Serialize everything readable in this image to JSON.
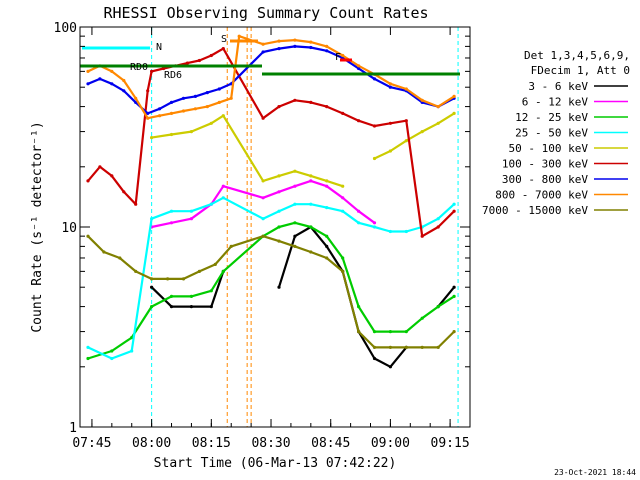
{
  "chart_data": {
    "type": "line",
    "title": "RHESSI Observing Summary Count Rates",
    "xlabel": "Start Time (06-Mar-13 07:42:22)",
    "ylabel": "Count Rate (s⁻¹ detector⁻¹)",
    "y_scale": "log",
    "ylim": [
      1,
      100
    ],
    "xlim": [
      "07:42",
      "09:20"
    ],
    "x_ticks": [
      "07:45",
      "08:00",
      "08:15",
      "08:30",
      "08:45",
      "09:00",
      "09:15"
    ],
    "y_ticks": [
      "1",
      "10",
      "100"
    ],
    "grid": false,
    "legend_position": "right",
    "legend_header": [
      "Det 1,3,4,5,6,9,",
      "FDecim 1, Att 0"
    ],
    "series": [
      {
        "name": "3 - 6 keV",
        "color": "#000000",
        "x": [
          "07:44",
          "07:55",
          "07:58",
          "08:00",
          "08:05",
          "08:10",
          "08:15",
          "08:18",
          "08:25",
          "08:28",
          "08:32",
          "08:36",
          "08:40",
          "08:44",
          "08:48",
          "08:52",
          "08:56",
          "09:00",
          "09:04",
          "09:08",
          "09:12",
          "09:16"
        ],
        "y": [
          null,
          null,
          null,
          5,
          4,
          4,
          4,
          6,
          null,
          null,
          5,
          9,
          10,
          8,
          6,
          3,
          2.2,
          2,
          2.5,
          null,
          4,
          5
        ]
      },
      {
        "name": "6 - 12 keV",
        "color": "#ff00ff",
        "x": [
          "08:00",
          "08:05",
          "08:10",
          "08:15",
          "08:18",
          "08:28",
          "08:32",
          "08:36",
          "08:40",
          "08:44",
          "08:48",
          "08:52",
          "08:56"
        ],
        "y": [
          10,
          10.5,
          11,
          13,
          16,
          14,
          15,
          16,
          17,
          16,
          14,
          12,
          10.5
        ]
      },
      {
        "name": "12 - 25 keV",
        "color": "#00cc00",
        "x": [
          "07:44",
          "07:50",
          "07:55",
          "08:00",
          "08:05",
          "08:10",
          "08:15",
          "08:18",
          "08:28",
          "08:32",
          "08:36",
          "08:40",
          "08:44",
          "08:48",
          "08:52",
          "08:56",
          "09:00",
          "09:04",
          "09:08",
          "09:12",
          "09:16"
        ],
        "y": [
          2.2,
          2.4,
          2.8,
          4,
          4.5,
          4.5,
          4.8,
          6,
          9,
          10,
          10.5,
          10,
          9,
          7,
          4,
          3,
          3,
          3,
          3.5,
          4,
          4.5
        ]
      },
      {
        "name": "25 - 50 keV",
        "color": "#00ffff",
        "x": [
          "07:44",
          "07:50",
          "07:55",
          "08:00",
          "08:05",
          "08:10",
          "08:15",
          "08:18",
          "08:28",
          "08:32",
          "08:36",
          "08:40",
          "08:44",
          "08:48",
          "08:52",
          "08:56",
          "09:00",
          "09:04",
          "09:08",
          "09:12",
          "09:16"
        ],
        "y": [
          2.5,
          2.2,
          2.4,
          11,
          12,
          12,
          13,
          14,
          11,
          12,
          13,
          13,
          12.5,
          12,
          10.5,
          10,
          9.5,
          9.5,
          10,
          11,
          13
        ]
      },
      {
        "name": "50 - 100 keV",
        "color": "#cccc00",
        "x": [
          "08:00",
          "08:05",
          "08:10",
          "08:15",
          "08:18",
          "08:28",
          "08:32",
          "08:36",
          "08:40",
          "08:44",
          "08:48",
          "08:52",
          "08:56",
          "09:00",
          "09:04",
          "09:08",
          "09:12",
          "09:16"
        ],
        "y": [
          28,
          29,
          30,
          33,
          36,
          17,
          18,
          19,
          18,
          17,
          16,
          null,
          22,
          24,
          27,
          30,
          33,
          37
        ]
      },
      {
        "name": "100 - 300 keV",
        "color": "#cc0000",
        "x": [
          "07:44",
          "07:47",
          "07:50",
          "07:53",
          "07:56",
          "07:59",
          "08:00",
          "08:03",
          "08:06",
          "08:09",
          "08:12",
          "08:15",
          "08:18",
          "08:28",
          "08:32",
          "08:36",
          "08:40",
          "08:44",
          "08:48",
          "08:52",
          "08:56",
          "09:00",
          "09:04",
          "09:08",
          "09:12",
          "09:16"
        ],
        "y": [
          17,
          20,
          18,
          15,
          13,
          48,
          60,
          62,
          64,
          66,
          68,
          72,
          78,
          35,
          40,
          43,
          42,
          40,
          37,
          34,
          32,
          33,
          34,
          9,
          10,
          12
        ]
      },
      {
        "name": "300 - 800 keV",
        "color": "#0000ee",
        "x": [
          "07:44",
          "07:47",
          "07:50",
          "07:53",
          "07:56",
          "07:59",
          "08:02",
          "08:05",
          "08:08",
          "08:11",
          "08:14",
          "08:17",
          "08:20",
          "08:28",
          "08:32",
          "08:36",
          "08:40",
          "08:44",
          "08:48",
          "08:52",
          "08:56",
          "09:00",
          "09:04",
          "09:08",
          "09:12",
          "09:16"
        ],
        "y": [
          52,
          55,
          52,
          48,
          42,
          37,
          39,
          42,
          44,
          45,
          47,
          49,
          52,
          75,
          78,
          80,
          79,
          76,
          70,
          62,
          55,
          50,
          48,
          42,
          40,
          44
        ]
      },
      {
        "name": "800 - 7000 keV",
        "color": "#ff8800",
        "x": [
          "07:44",
          "07:47",
          "07:50",
          "07:53",
          "07:56",
          "07:59",
          "08:02",
          "08:05",
          "08:08",
          "08:11",
          "08:14",
          "08:17",
          "08:20",
          "08:22",
          "08:28",
          "08:32",
          "08:36",
          "08:40",
          "08:44",
          "08:48",
          "08:52",
          "08:56",
          "09:00",
          "09:04",
          "09:08",
          "09:12",
          "09:16"
        ],
        "y": [
          60,
          64,
          60,
          54,
          44,
          35,
          36,
          37,
          38,
          39,
          40,
          42,
          44,
          90,
          82,
          85,
          86,
          84,
          80,
          72,
          64,
          58,
          52,
          49,
          43,
          40,
          45
        ]
      },
      {
        "name": "7000 - 15000 keV",
        "color": "#808000",
        "x": [
          "07:44",
          "07:48",
          "07:52",
          "07:56",
          "08:00",
          "08:04",
          "08:08",
          "08:12",
          "08:16",
          "08:20",
          "08:28",
          "08:32",
          "08:36",
          "08:40",
          "08:44",
          "08:48",
          "08:52",
          "08:56",
          "09:00",
          "09:04",
          "09:08",
          "09:12",
          "09:16"
        ],
        "y": [
          9,
          7.5,
          7,
          6,
          5.5,
          5.5,
          5.5,
          6,
          6.5,
          8,
          9,
          8.5,
          8,
          7.5,
          7,
          6,
          3,
          2.5,
          2.5,
          2.5,
          2.5,
          2.5,
          3
        ]
      }
    ],
    "annotations": [
      {
        "label": "N",
        "color": "#00ffff"
      },
      {
        "label": "S",
        "color": "#ff8800"
      },
      {
        "label": "F",
        "color": "#ff0000"
      },
      {
        "label": "RD0",
        "color": "#008000"
      },
      {
        "label": "RD6",
        "color": "#008000"
      }
    ],
    "footer_date": "23-Oct-2021 18:44"
  }
}
